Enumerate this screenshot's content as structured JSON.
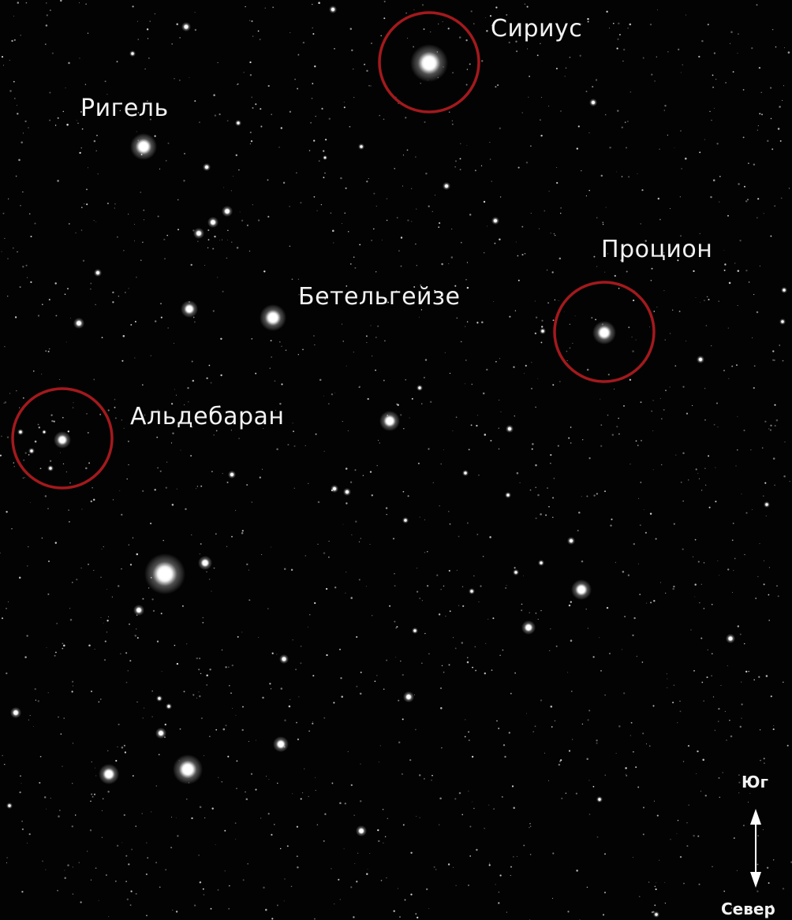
{
  "star_labels": [
    "Сириус",
    "Ригель",
    "Процион",
    "Бетельгейзе",
    "Альдебаран"
  ],
  "compass": {
    "south": "Юг",
    "north": "Север"
  }
}
